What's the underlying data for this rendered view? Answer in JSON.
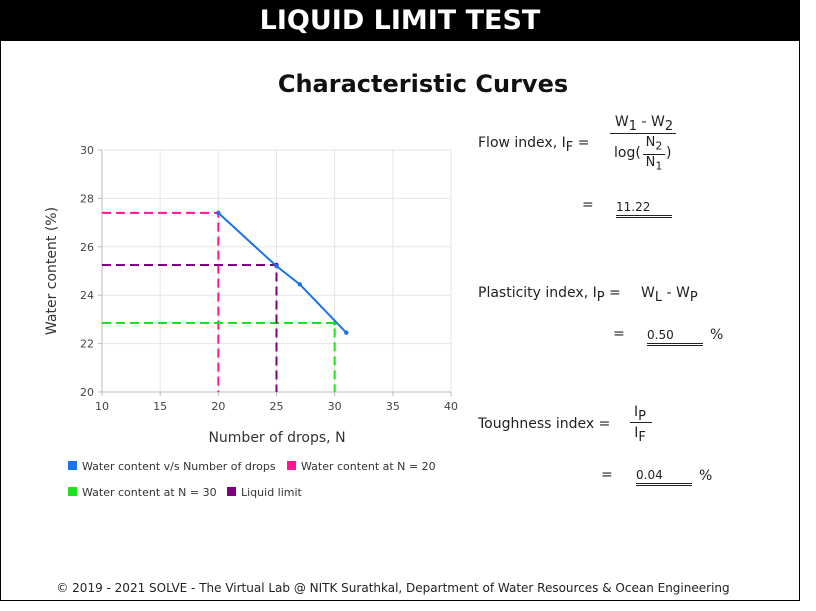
{
  "header": {
    "title": "LIQUID LIMIT TEST"
  },
  "page": {
    "subtitle": "Characteristic Curves"
  },
  "chart_data": {
    "type": "line",
    "xlabel": "Number of drops, N",
    "ylabel": "Water content (%)",
    "xlim": [
      10,
      40
    ],
    "ylim": [
      20,
      30
    ],
    "xticks": [
      10,
      15,
      20,
      25,
      30,
      35,
      40
    ],
    "yticks": [
      20,
      22,
      24,
      26,
      28,
      30
    ],
    "grid": true,
    "legend_position": "bottom",
    "series": [
      {
        "name": "Water content v/s Number of drops",
        "color": "#1a73e8",
        "style": "solid",
        "x": [
          20,
          25,
          27,
          31
        ],
        "y": [
          27.4,
          25.2,
          24.45,
          22.45
        ]
      },
      {
        "name": "Water content at N = 20",
        "color": "#ff1493",
        "style": "dashed",
        "x": [
          10,
          20,
          20
        ],
        "y": [
          27.4,
          27.4,
          20
        ]
      },
      {
        "name": "Water content at N = 30",
        "color": "#1fe01f",
        "style": "dashed",
        "x": [
          10,
          30,
          30
        ],
        "y": [
          22.85,
          22.85,
          20
        ]
      },
      {
        "name": "Liquid limit",
        "color": "#800080",
        "style": "dashed",
        "x": [
          10,
          25,
          25
        ],
        "y": [
          25.25,
          25.25,
          20
        ]
      }
    ]
  },
  "formulas": {
    "flow": {
      "label": "Flow index, I",
      "label_sub": "F",
      "eq": "=",
      "num_a": "W",
      "num_a_sub": "1",
      "num_op": " - W",
      "num_b_sub": "2",
      "den_pre": "log(",
      "den_top": "N",
      "den_top_sub": "2",
      "den_bot": "N",
      "den_bot_sub": "1",
      "den_post": ")",
      "result": "11.22"
    },
    "plasticity": {
      "label": "Plasticity index, I",
      "label_sub": "P",
      "eq": "=",
      "expr_a": "W",
      "expr_a_sub": "L",
      "expr_op": " - W",
      "expr_b_sub": "P",
      "result": "0.50",
      "unit": "%"
    },
    "toughness": {
      "label": "Toughness index",
      "eq": "=",
      "num": "I",
      "num_sub": "P",
      "den": "I",
      "den_sub": "F",
      "result": "0.04",
      "unit": "%"
    }
  },
  "footer": {
    "text": "© 2019 - 2021 SOLVE - The Virtual Lab @ NITK Surathkal, Department of Water Resources & Ocean Engineering"
  }
}
